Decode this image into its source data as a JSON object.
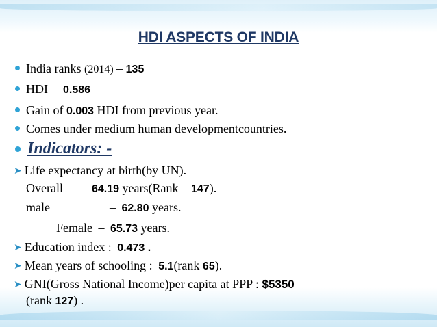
{
  "title": "HDI ASPECTS OF INDIA",
  "lines": {
    "rank": {
      "label": "India ranks",
      "year": "(2014)",
      "dash": "–",
      "value": "135"
    },
    "hdi": {
      "label": "HDI –",
      "value": "0.586"
    },
    "gain": {
      "pre": "Gain of",
      "value": "0.003",
      "post": "HDI from previous year."
    },
    "medium": {
      "text": "Comes under medium human developmentcountries."
    },
    "indicators": {
      "text": "Indicators: -"
    },
    "life": {
      "text": "Life expectancy at birth(by UN)."
    },
    "overall": {
      "label": "Overall –",
      "value": "64.19",
      "mid": "years(Rank",
      "rank": "147",
      "end": ")."
    },
    "male": {
      "label": "male",
      "dash": "–",
      "value": "62.80",
      "end": "years."
    },
    "female": {
      "label": "Female",
      "dash": "–",
      "value": "65.73",
      "end": "years."
    },
    "education": {
      "label": "Education index  :",
      "value": "0.473",
      "end": "."
    },
    "schooling": {
      "label": "Mean years of schooling :",
      "value": "5.1",
      "mid": "(rank",
      "rank": "65",
      "end": ")."
    },
    "gni": {
      "label": "GNI(Gross National Income)per capita at PPP :",
      "value": "$5350"
    },
    "gni_rank": {
      "pre": "(rank",
      "value": "127",
      "end": ") ."
    }
  },
  "colors": {
    "title": "#1f3864",
    "bullet": "#2fa3d6",
    "arrow": "#2a8fc4"
  },
  "icons": {
    "bullet": "filled-circle",
    "arrow": "right-arrowhead"
  }
}
